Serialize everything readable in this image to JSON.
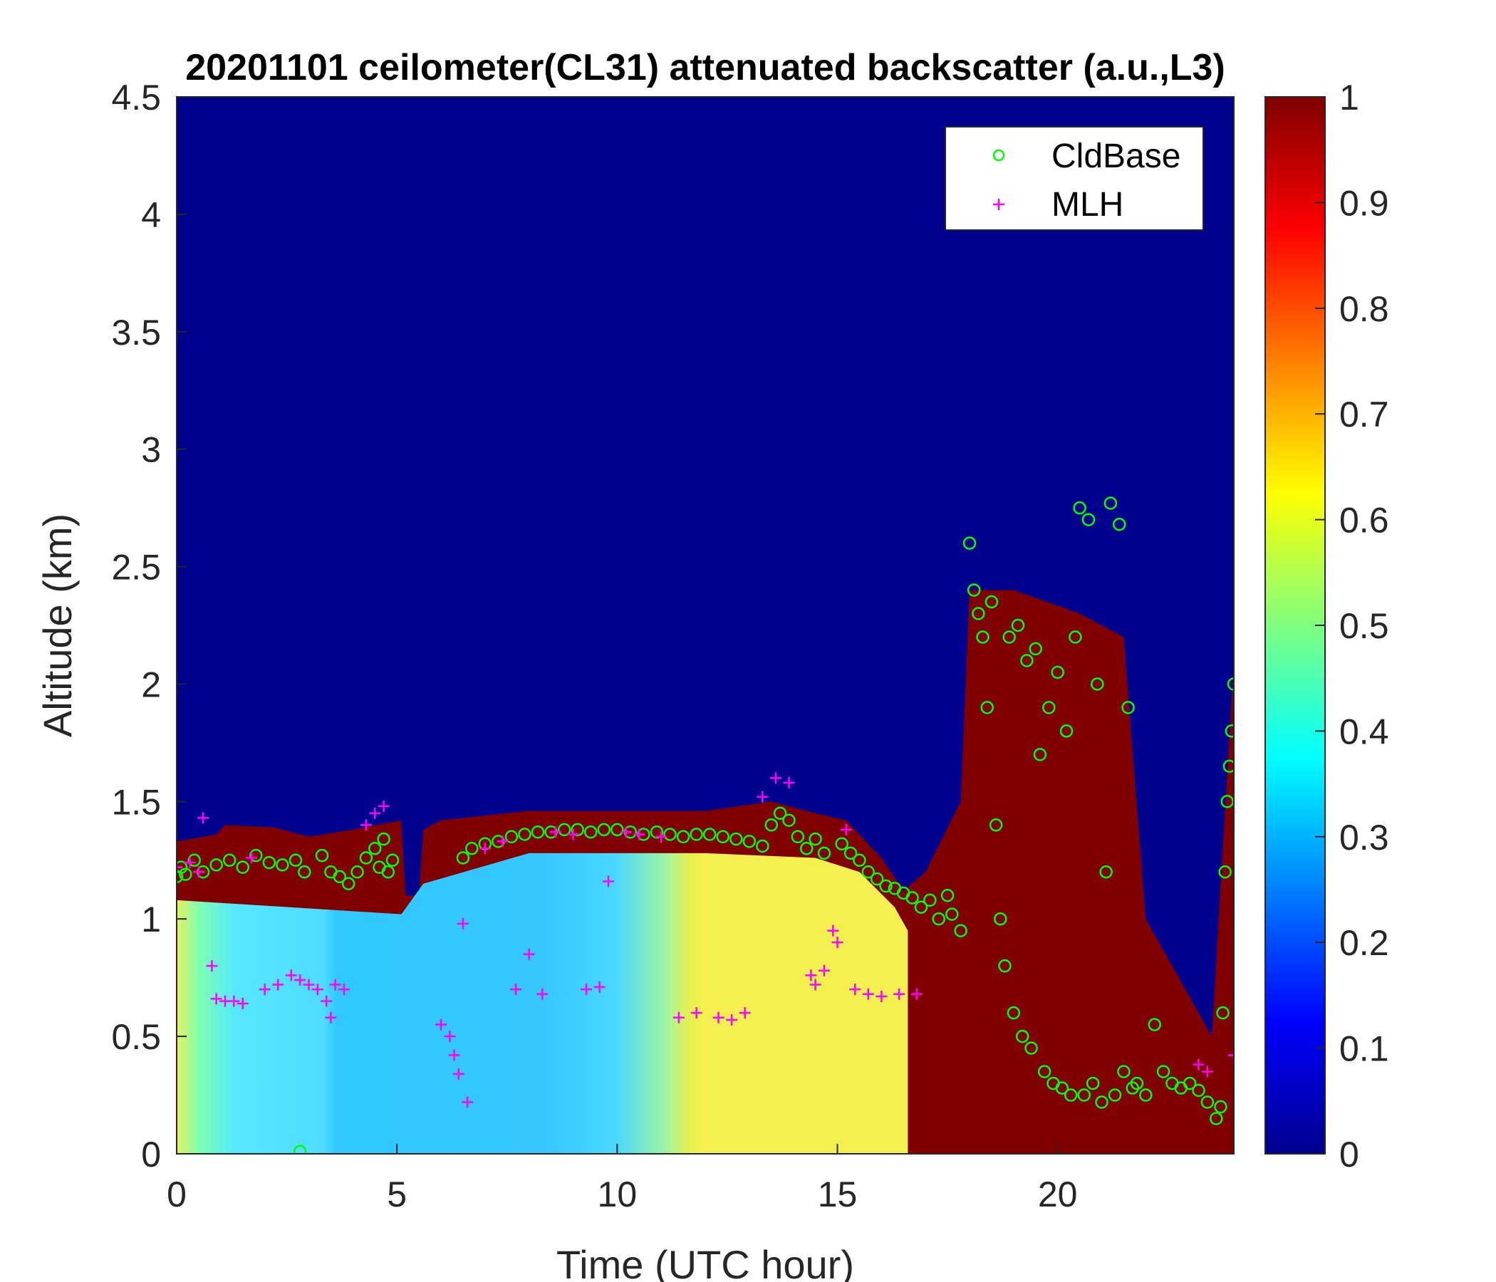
{
  "chart_data": {
    "type": "heatmap",
    "title": "20201101 ceilometer(CL31) attenuated backscatter (a.u.,L3)",
    "xlabel": "Time (UTC hour)",
    "ylabel": "Altitude (km)",
    "xlim": [
      0,
      24
    ],
    "ylim": [
      0,
      4.5
    ],
    "xticks": [
      "0",
      "5",
      "10",
      "15",
      "20"
    ],
    "xtick_values": [
      0,
      5,
      10,
      15,
      20
    ],
    "yticks": [
      "0",
      "0.5",
      "1",
      "1.5",
      "2",
      "2.5",
      "3",
      "3.5",
      "4",
      "4.5"
    ],
    "ytick_values": [
      0,
      0.5,
      1,
      1.5,
      2,
      2.5,
      3,
      3.5,
      4,
      4.5
    ],
    "colorbar": {
      "colormap": "jet",
      "range": [
        0,
        1
      ],
      "ticks": [
        "0",
        "0.1",
        "0.2",
        "0.3",
        "0.4",
        "0.5",
        "0.6",
        "0.7",
        "0.8",
        "0.9",
        "1"
      ],
      "tick_values": [
        0,
        0.1,
        0.2,
        0.3,
        0.4,
        0.5,
        0.6,
        0.7,
        0.8,
        0.9,
        1
      ]
    },
    "colors": {
      "background": "#00008f",
      "saturated": "#800000",
      "cldbase": "#00ff00",
      "mlh": "#ff00ff"
    },
    "legend": {
      "position": "top-right",
      "entries": [
        {
          "label": "CldBase",
          "marker": "circle",
          "color": "#00ff00"
        },
        {
          "label": "MLH",
          "marker": "plus",
          "color": "#ff00ff"
        }
      ]
    },
    "layer_top_km": [
      [
        0,
        1.33
      ],
      [
        0.9,
        1.36
      ],
      [
        1.1,
        1.4
      ],
      [
        2.2,
        1.39
      ],
      [
        3.0,
        1.35
      ],
      [
        4.0,
        1.38
      ],
      [
        5.1,
        1.42
      ],
      [
        5.2,
        1.1
      ],
      [
        5.5,
        1.1
      ],
      [
        5.6,
        1.38
      ],
      [
        6.0,
        1.42
      ],
      [
        8.0,
        1.46
      ],
      [
        10.0,
        1.46
      ],
      [
        12.0,
        1.46
      ],
      [
        13.5,
        1.5
      ],
      [
        14.5,
        1.45
      ],
      [
        15.2,
        1.42
      ],
      [
        16.0,
        1.26
      ],
      [
        16.5,
        1.12
      ],
      [
        17.0,
        1.2
      ],
      [
        17.8,
        1.5
      ],
      [
        18.0,
        2.4
      ],
      [
        19.0,
        2.4
      ],
      [
        20.5,
        2.3
      ],
      [
        21.5,
        2.2
      ],
      [
        22.0,
        1.0
      ],
      [
        23.5,
        0.5
      ],
      [
        24.0,
        2.1
      ]
    ],
    "series": [
      {
        "name": "CldBase",
        "marker": "circle",
        "points": [
          [
            0.0,
            1.18
          ],
          [
            0.1,
            1.22
          ],
          [
            0.2,
            1.19
          ],
          [
            0.4,
            1.25
          ],
          [
            0.6,
            1.2
          ],
          [
            0.9,
            1.23
          ],
          [
            1.2,
            1.25
          ],
          [
            1.5,
            1.22
          ],
          [
            1.8,
            1.27
          ],
          [
            2.1,
            1.24
          ],
          [
            2.4,
            1.23
          ],
          [
            2.7,
            1.25
          ],
          [
            2.9,
            1.2
          ],
          [
            3.3,
            1.27
          ],
          [
            3.5,
            1.2
          ],
          [
            3.7,
            1.18
          ],
          [
            3.9,
            1.15
          ],
          [
            4.1,
            1.2
          ],
          [
            4.3,
            1.26
          ],
          [
            4.5,
            1.3
          ],
          [
            4.6,
            1.22
          ],
          [
            4.7,
            1.34
          ],
          [
            4.8,
            1.2
          ],
          [
            4.9,
            1.25
          ],
          [
            2.8,
            0.01
          ],
          [
            6.5,
            1.26
          ],
          [
            6.7,
            1.3
          ],
          [
            7.0,
            1.32
          ],
          [
            7.3,
            1.33
          ],
          [
            7.6,
            1.35
          ],
          [
            7.9,
            1.36
          ],
          [
            8.2,
            1.37
          ],
          [
            8.5,
            1.37
          ],
          [
            8.8,
            1.38
          ],
          [
            9.1,
            1.38
          ],
          [
            9.4,
            1.37
          ],
          [
            9.7,
            1.38
          ],
          [
            10.0,
            1.38
          ],
          [
            10.3,
            1.37
          ],
          [
            10.6,
            1.36
          ],
          [
            10.9,
            1.37
          ],
          [
            11.2,
            1.36
          ],
          [
            11.5,
            1.35
          ],
          [
            11.8,
            1.36
          ],
          [
            12.1,
            1.36
          ],
          [
            12.4,
            1.35
          ],
          [
            12.7,
            1.34
          ],
          [
            13.0,
            1.33
          ],
          [
            13.3,
            1.31
          ],
          [
            13.5,
            1.4
          ],
          [
            13.7,
            1.45
          ],
          [
            13.9,
            1.42
          ],
          [
            14.1,
            1.35
          ],
          [
            14.3,
            1.3
          ],
          [
            14.5,
            1.34
          ],
          [
            14.7,
            1.28
          ],
          [
            15.1,
            1.32
          ],
          [
            15.3,
            1.28
          ],
          [
            15.5,
            1.25
          ],
          [
            15.7,
            1.2
          ],
          [
            15.9,
            1.17
          ],
          [
            16.1,
            1.14
          ],
          [
            16.3,
            1.13
          ],
          [
            16.5,
            1.11
          ],
          [
            16.7,
            1.09
          ],
          [
            16.9,
            1.05
          ],
          [
            17.1,
            1.08
          ],
          [
            17.3,
            1.0
          ],
          [
            17.5,
            1.1
          ],
          [
            17.6,
            1.02
          ],
          [
            17.8,
            0.95
          ],
          [
            18.0,
            2.6
          ],
          [
            18.1,
            2.4
          ],
          [
            18.2,
            2.3
          ],
          [
            18.3,
            2.2
          ],
          [
            18.4,
            1.9
          ],
          [
            18.5,
            2.35
          ],
          [
            18.6,
            1.4
          ],
          [
            18.7,
            1.0
          ],
          [
            18.8,
            0.8
          ],
          [
            18.9,
            2.2
          ],
          [
            19.0,
            0.6
          ],
          [
            19.1,
            2.25
          ],
          [
            19.2,
            0.5
          ],
          [
            19.3,
            2.1
          ],
          [
            19.4,
            0.45
          ],
          [
            19.5,
            2.15
          ],
          [
            19.6,
            1.7
          ],
          [
            19.7,
            0.35
          ],
          [
            19.8,
            1.9
          ],
          [
            19.9,
            0.3
          ],
          [
            20.0,
            2.05
          ],
          [
            20.1,
            0.28
          ],
          [
            20.2,
            1.8
          ],
          [
            20.3,
            0.25
          ],
          [
            20.4,
            2.2
          ],
          [
            20.5,
            2.75
          ],
          [
            20.6,
            0.25
          ],
          [
            20.7,
            2.7
          ],
          [
            20.8,
            0.3
          ],
          [
            20.9,
            2.0
          ],
          [
            21.0,
            0.22
          ],
          [
            21.1,
            1.2
          ],
          [
            21.2,
            2.77
          ],
          [
            21.3,
            0.25
          ],
          [
            21.4,
            2.68
          ],
          [
            21.5,
            0.35
          ],
          [
            21.6,
            1.9
          ],
          [
            21.7,
            0.28
          ],
          [
            21.8,
            0.3
          ],
          [
            22.0,
            0.25
          ],
          [
            22.2,
            0.55
          ],
          [
            22.4,
            0.35
          ],
          [
            22.6,
            0.3
          ],
          [
            22.8,
            0.28
          ],
          [
            23.0,
            0.3
          ],
          [
            23.2,
            0.27
          ],
          [
            23.4,
            0.22
          ],
          [
            23.6,
            0.15
          ],
          [
            23.7,
            0.2
          ],
          [
            23.75,
            0.6
          ],
          [
            23.8,
            1.2
          ],
          [
            23.85,
            1.5
          ],
          [
            23.9,
            1.65
          ],
          [
            23.95,
            1.8
          ],
          [
            24.0,
            2.0
          ]
        ]
      },
      {
        "name": "MLH",
        "marker": "plus",
        "points": [
          [
            0.0,
            1.22
          ],
          [
            0.3,
            1.24
          ],
          [
            0.5,
            1.2
          ],
          [
            0.6,
            1.43
          ],
          [
            0.8,
            0.8
          ],
          [
            0.9,
            0.66
          ],
          [
            1.1,
            0.65
          ],
          [
            1.3,
            0.65
          ],
          [
            1.5,
            0.64
          ],
          [
            1.7,
            1.26
          ],
          [
            2.0,
            0.7
          ],
          [
            2.3,
            0.72
          ],
          [
            2.6,
            0.76
          ],
          [
            2.8,
            0.74
          ],
          [
            3.0,
            0.72
          ],
          [
            3.2,
            0.7
          ],
          [
            3.4,
            0.65
          ],
          [
            3.5,
            0.58
          ],
          [
            3.6,
            0.72
          ],
          [
            3.8,
            0.7
          ],
          [
            4.3,
            1.4
          ],
          [
            4.5,
            1.45
          ],
          [
            4.7,
            1.48
          ],
          [
            6.0,
            0.55
          ],
          [
            6.2,
            0.5
          ],
          [
            6.3,
            0.42
          ],
          [
            6.4,
            0.34
          ],
          [
            6.5,
            0.98
          ],
          [
            6.6,
            0.22
          ],
          [
            7.0,
            1.3
          ],
          [
            7.4,
            1.33
          ],
          [
            7.7,
            0.7
          ],
          [
            8.0,
            0.85
          ],
          [
            8.3,
            0.68
          ],
          [
            8.6,
            1.37
          ],
          [
            9.0,
            1.36
          ],
          [
            9.3,
            0.7
          ],
          [
            9.6,
            0.71
          ],
          [
            9.8,
            1.16
          ],
          [
            10.2,
            1.37
          ],
          [
            10.5,
            1.36
          ],
          [
            11.0,
            1.35
          ],
          [
            11.4,
            0.58
          ],
          [
            11.8,
            0.6
          ],
          [
            12.3,
            0.58
          ],
          [
            12.6,
            0.57
          ],
          [
            12.9,
            0.6
          ],
          [
            13.3,
            1.52
          ],
          [
            13.6,
            1.6
          ],
          [
            13.9,
            1.58
          ],
          [
            14.4,
            0.76
          ],
          [
            14.5,
            0.72
          ],
          [
            14.7,
            0.78
          ],
          [
            14.9,
            0.95
          ],
          [
            15.0,
            0.9
          ],
          [
            15.2,
            1.38
          ],
          [
            15.4,
            0.7
          ],
          [
            15.7,
            0.68
          ],
          [
            16.0,
            0.67
          ],
          [
            16.4,
            0.68
          ],
          [
            16.8,
            0.68
          ],
          [
            23.2,
            0.38
          ],
          [
            23.4,
            0.35
          ],
          [
            24.0,
            0.42
          ]
        ]
      }
    ]
  }
}
